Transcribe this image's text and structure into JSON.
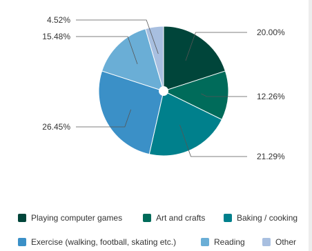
{
  "chart_data": {
    "type": "pie",
    "title": "",
    "donut_hole": true,
    "legend_position": "bottom",
    "slices": [
      {
        "name": "Playing computer games",
        "value": 20.0,
        "label": "20.00%",
        "color": "#00453a"
      },
      {
        "name": "Art and crafts",
        "value": 12.26,
        "label": "12.26%",
        "color": "#006b5a"
      },
      {
        "name": "Baking / cooking",
        "value": 21.29,
        "label": "21.29%",
        "color": "#00808c"
      },
      {
        "name": "Exercise (walking, football, skating etc.)",
        "value": 26.45,
        "label": "26.45%",
        "color": "#3b90c7"
      },
      {
        "name": "Reading",
        "value": 15.48,
        "label": "15.48%",
        "color": "#6aaed6"
      },
      {
        "name": "Other",
        "value": 4.52,
        "label": "4.52%",
        "color": "#a8bfe0"
      }
    ]
  }
}
